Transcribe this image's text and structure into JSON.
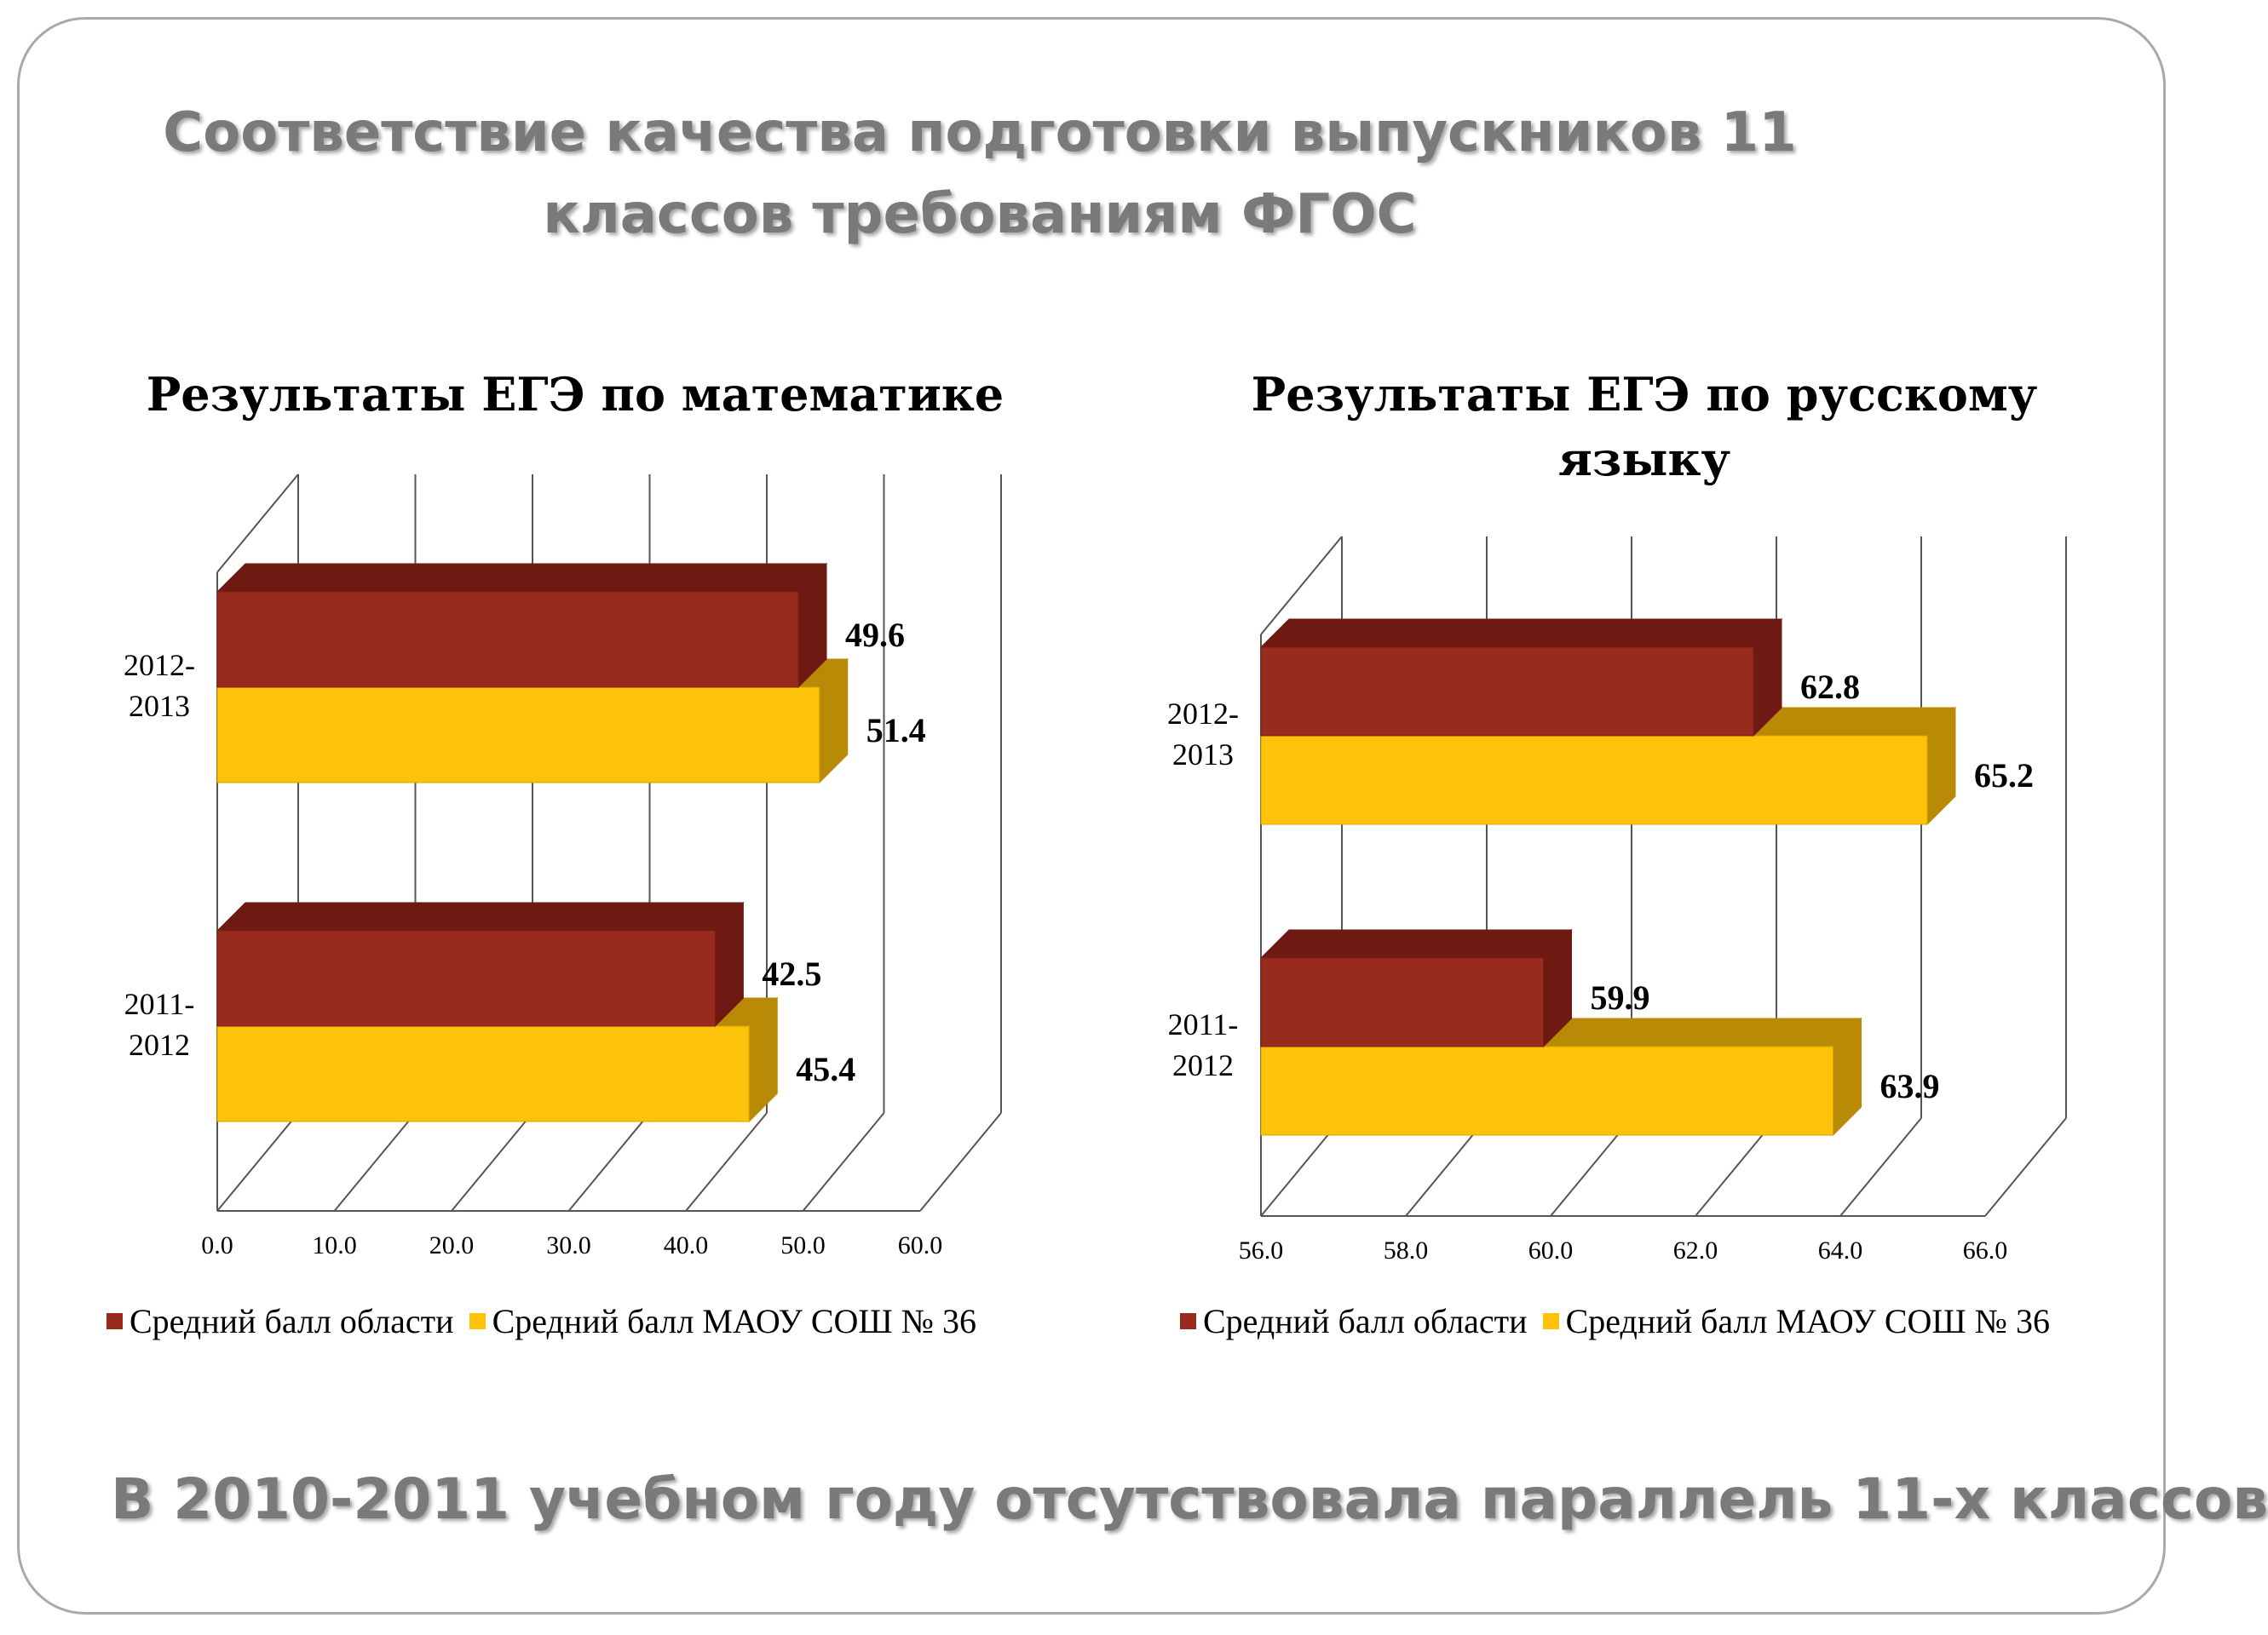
{
  "slide": {
    "title": "Соответствие качества подготовки выпускников 11 классов требованиям ФГОС",
    "footer": "В 2010-2011 учебном году отсутствовала параллель 11-х классов"
  },
  "colors": {
    "region_front": "#992a1e",
    "region_dark": "#6e1a12",
    "school_front": "#fdc20a",
    "school_dark": "#b88a05",
    "grid": "#555555"
  },
  "chart_data": [
    {
      "type": "bar",
      "orientation": "horizontal",
      "style": "3d",
      "title": "Результаты ЕГЭ по математике",
      "categories": [
        "2012-2013",
        "2011-2012"
      ],
      "category_labels": [
        [
          "2012-",
          "2013"
        ],
        [
          "2011-",
          "2012"
        ]
      ],
      "series": [
        {
          "name": "Средний балл области",
          "values": [
            49.6,
            42.5
          ],
          "color": "#992a1e"
        },
        {
          "name": "Средний балл МАОУ СОШ № 36",
          "values": [
            51.4,
            45.4
          ],
          "color": "#fdc20a"
        }
      ],
      "xlim": [
        0,
        60
      ],
      "xticks": [
        "0.0",
        "10.0",
        "20.0",
        "30.0",
        "40.0",
        "50.0",
        "60.0"
      ],
      "grid": true,
      "legend": "bottom"
    },
    {
      "type": "bar",
      "orientation": "horizontal",
      "style": "3d",
      "title": "Результаты ЕГЭ по русскому языку",
      "categories": [
        "2012-2013",
        "2011-2012"
      ],
      "category_labels": [
        [
          "2012-",
          "2013"
        ],
        [
          "2011-",
          "2012"
        ]
      ],
      "series": [
        {
          "name": "Средний балл области",
          "values": [
            62.8,
            59.9
          ],
          "color": "#992a1e"
        },
        {
          "name": "Средний балл МАОУ СОШ № 36",
          "values": [
            65.2,
            63.9
          ],
          "color": "#fdc20a"
        }
      ],
      "xlim": [
        56,
        66
      ],
      "xticks": [
        "56.0",
        "58.0",
        "60.0",
        "62.0",
        "64.0",
        "66.0"
      ],
      "grid": true,
      "legend": "bottom"
    }
  ]
}
